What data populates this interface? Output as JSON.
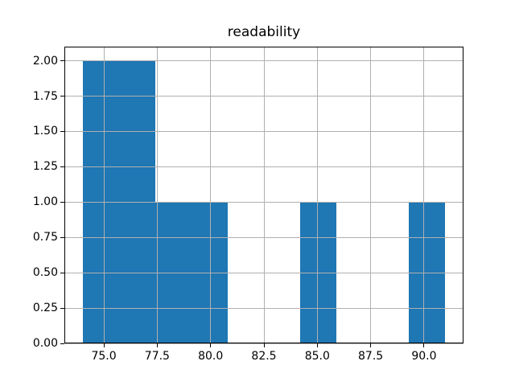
{
  "figure": {
    "background": "#ffffff",
    "bar_color": "#1f77b4",
    "grid_color": "#b0b0b0",
    "spine_color": "#000000",
    "text_color": "#000000"
  },
  "chart_data": {
    "type": "bar",
    "subtype": "histogram",
    "title": "readability",
    "xlabel": "",
    "ylabel": "",
    "bin_edges": [
      74.0,
      75.7,
      77.4,
      79.1,
      80.8,
      82.5,
      84.2,
      85.9,
      87.6,
      89.3,
      91.0
    ],
    "counts": [
      2,
      2,
      1,
      1,
      0,
      0,
      1,
      0,
      0,
      1
    ],
    "xlim": [
      73.15,
      91.85
    ],
    "ylim": [
      0,
      2.1
    ],
    "x_ticks": [
      75.0,
      77.5,
      80.0,
      82.5,
      85.0,
      87.5,
      90.0
    ],
    "x_tick_labels": [
      "75.0",
      "77.5",
      "80.0",
      "82.5",
      "85.0",
      "87.5",
      "90.0"
    ],
    "y_ticks": [
      0.0,
      0.25,
      0.5,
      0.75,
      1.0,
      1.25,
      1.5,
      1.75,
      2.0
    ],
    "y_tick_labels": [
      "0.00",
      "0.25",
      "0.50",
      "0.75",
      "1.00",
      "1.25",
      "1.50",
      "1.75",
      "2.00"
    ],
    "grid": true,
    "grid_above_bars": true,
    "legend": false
  }
}
